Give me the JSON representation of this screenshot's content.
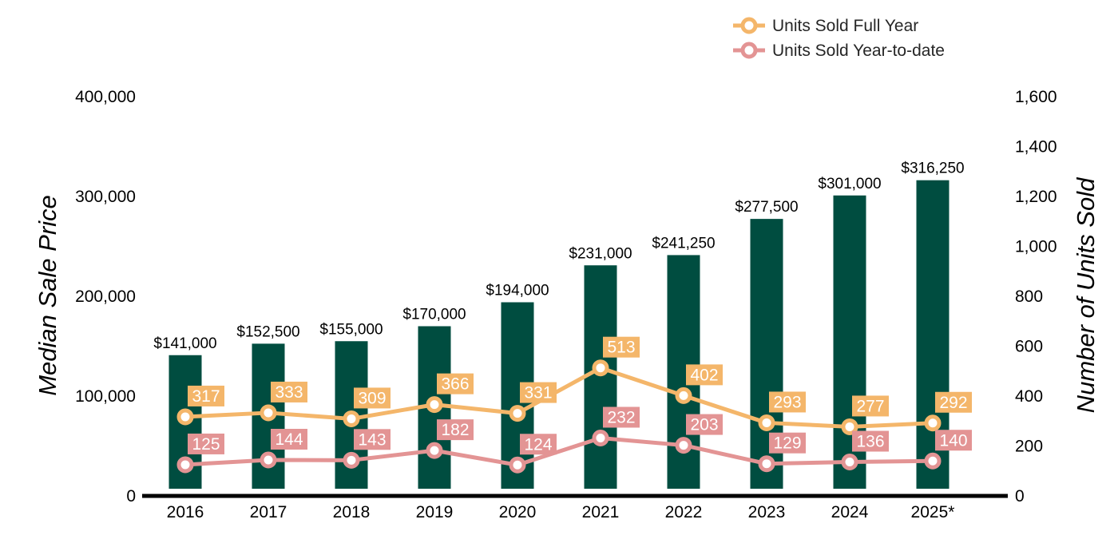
{
  "chart_data": {
    "type": "bar",
    "categories": [
      "2016",
      "2017",
      "2018",
      "2019",
      "2020",
      "2021",
      "2022",
      "2023",
      "2024",
      "2025*"
    ],
    "bars": {
      "values": [
        141000,
        152500,
        155000,
        170000,
        194000,
        231000,
        241250,
        277500,
        301000,
        316250
      ],
      "labels": [
        "$141,000",
        "$152,500",
        "$155,000",
        "$170,000",
        "$194,000",
        "$231,000",
        "$241,250",
        "$277,500",
        "$301,000",
        "$316,250"
      ],
      "color": "#004d40"
    },
    "series": [
      {
        "name": "Units Sold Full Year",
        "type": "line",
        "axis": "right",
        "color": "#f4b66a",
        "values": [
          317,
          333,
          309,
          366,
          331,
          513,
          402,
          293,
          277,
          292
        ]
      },
      {
        "name": "Units Sold Year-to-date",
        "type": "line",
        "axis": "right",
        "color": "#e39494",
        "values": [
          125,
          144,
          143,
          182,
          124,
          232,
          203,
          129,
          136,
          140
        ]
      }
    ],
    "ylabel": "Median Sale Price",
    "y2label": "Number of Units Sold",
    "ylim": [
      0,
      400000
    ],
    "y2lim": [
      0,
      1600
    ],
    "yticks": [
      "0",
      "100,000",
      "200,000",
      "300,000",
      "400,000"
    ],
    "y2ticks": [
      "0",
      "200",
      "400",
      "600",
      "800",
      "1,000",
      "1,200",
      "1,400",
      "1,600"
    ],
    "legend_position": "top-right",
    "grid": false
  }
}
